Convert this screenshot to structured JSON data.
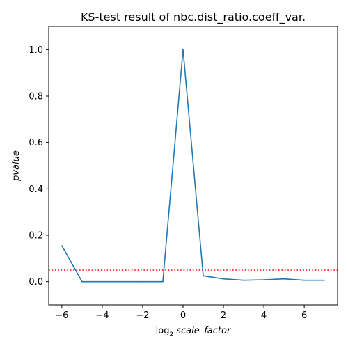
{
  "chart_data": {
    "type": "line",
    "title": "KS-test result of nbc.dist_ratio.coeff_var.",
    "xlabel_prefix": "log",
    "xlabel_subscript": "2",
    "xlabel_main": "scale_factor",
    "ylabel": "pvalue",
    "xlim": [
      -6.65,
      7.65
    ],
    "ylim": [
      -0.1,
      1.1
    ],
    "x_ticks": [
      -6,
      -4,
      -2,
      0,
      2,
      4,
      6
    ],
    "x_tick_labels": [
      "−6",
      "−4",
      "−2",
      "0",
      "2",
      "4",
      "6"
    ],
    "y_ticks": [
      0.0,
      0.2,
      0.4,
      0.6,
      0.8,
      1.0
    ],
    "y_tick_labels": [
      "0.0",
      "0.2",
      "0.4",
      "0.6",
      "0.8",
      "1.0"
    ],
    "grid": false,
    "series": [
      {
        "color": "#1f77b4",
        "x": [
          -6,
          -5,
          -4,
          -3,
          -2,
          -1,
          0,
          1,
          2,
          3,
          4,
          5,
          6,
          7
        ],
        "y": [
          0.155,
          0.0,
          0.0,
          0.0,
          0.0,
          0.0,
          1.0,
          0.025,
          0.012,
          0.006,
          0.008,
          0.012,
          0.006,
          0.006
        ]
      }
    ],
    "threshold": {
      "y": 0.05,
      "color": "#ff0000",
      "style": "dotted"
    }
  }
}
